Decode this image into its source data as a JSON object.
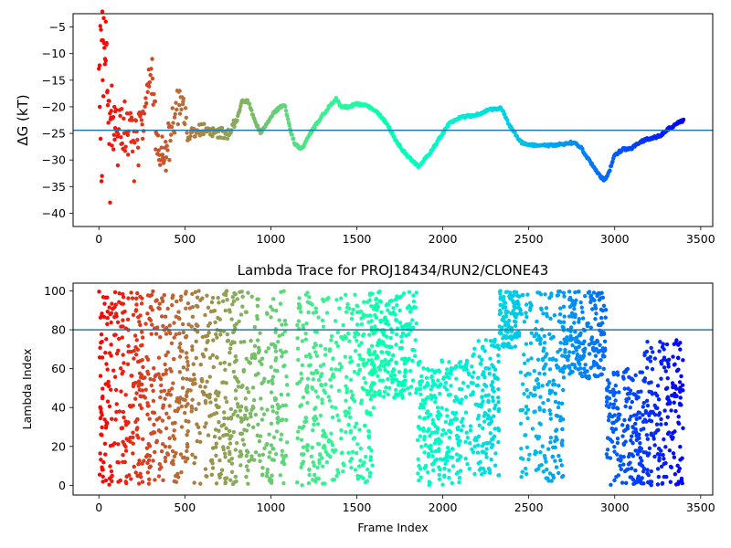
{
  "chart_data": [
    {
      "type": "scatter",
      "title": "",
      "xlabel": "",
      "ylabel": "ΔG (kT)",
      "xlim": [
        -150,
        3570
      ],
      "ylim": [
        -42.5,
        -2.5
      ],
      "xticks": [
        0,
        500,
        1000,
        1500,
        2000,
        2500,
        3000,
        3500
      ],
      "yticks": [
        -40,
        -35,
        -30,
        -25,
        -20,
        -15,
        -10,
        -5
      ],
      "hline": -24.4,
      "hline_color": "#1f77b4",
      "colormap": "rainbow_r",
      "grid": false,
      "trace": [
        [
          0,
          -10
        ],
        [
          20,
          -5
        ],
        [
          40,
          -9
        ],
        [
          60,
          -21
        ],
        [
          80,
          -25
        ],
        [
          100,
          -24
        ],
        [
          120,
          -22
        ],
        [
          140,
          -25
        ],
        [
          160,
          -25
        ],
        [
          180,
          -23
        ],
        [
          200,
          -26
        ],
        [
          220,
          -25
        ],
        [
          240,
          -24
        ],
        [
          260,
          -23
        ],
        [
          280,
          -18
        ],
        [
          300,
          -14
        ],
        [
          320,
          -18
        ],
        [
          340,
          -26
        ],
        [
          360,
          -28
        ],
        [
          380,
          -27
        ],
        [
          400,
          -26
        ],
        [
          420,
          -24
        ],
        [
          440,
          -22
        ],
        [
          460,
          -20
        ],
        [
          480,
          -18
        ],
        [
          500,
          -23
        ],
        [
          520,
          -25
        ],
        [
          560,
          -25
        ],
        [
          600,
          -24
        ],
        [
          650,
          -25
        ],
        [
          700,
          -25
        ],
        [
          750,
          -25
        ],
        [
          800,
          -23
        ],
        [
          830,
          -19
        ],
        [
          870,
          -19
        ],
        [
          900,
          -22
        ],
        [
          940,
          -25
        ],
        [
          980,
          -23
        ],
        [
          1020,
          -21
        ],
        [
          1080,
          -19.5
        ],
        [
          1110,
          -24
        ],
        [
          1140,
          -27
        ],
        [
          1180,
          -28
        ],
        [
          1230,
          -25
        ],
        [
          1290,
          -22
        ],
        [
          1340,
          -20
        ],
        [
          1380,
          -18.5
        ],
        [
          1410,
          -20
        ],
        [
          1450,
          -20
        ],
        [
          1500,
          -19.5
        ],
        [
          1560,
          -19.8
        ],
        [
          1620,
          -21
        ],
        [
          1680,
          -23.5
        ],
        [
          1740,
          -27
        ],
        [
          1800,
          -29.5
        ],
        [
          1860,
          -31.2
        ],
        [
          1920,
          -29
        ],
        [
          1980,
          -26
        ],
        [
          2040,
          -23
        ],
        [
          2100,
          -22
        ],
        [
          2200,
          -21.5
        ],
        [
          2280,
          -20.5
        ],
        [
          2340,
          -20.2
        ],
        [
          2380,
          -23
        ],
        [
          2420,
          -25
        ],
        [
          2460,
          -26.8
        ],
        [
          2500,
          -27.2
        ],
        [
          2600,
          -27.3
        ],
        [
          2700,
          -27
        ],
        [
          2760,
          -26.7
        ],
        [
          2800,
          -27.5
        ],
        [
          2850,
          -30
        ],
        [
          2900,
          -32.5
        ],
        [
          2940,
          -33.8
        ],
        [
          2970,
          -32
        ],
        [
          3000,
          -29
        ],
        [
          3050,
          -28
        ],
        [
          3100,
          -27.8
        ],
        [
          3150,
          -26.5
        ],
        [
          3200,
          -26
        ],
        [
          3260,
          -25.5
        ],
        [
          3320,
          -24
        ],
        [
          3400,
          -22.5
        ]
      ],
      "noise_points": [
        [
          5,
          -20
        ],
        [
          10,
          -26
        ],
        [
          15,
          -34
        ],
        [
          18,
          -33
        ],
        [
          22,
          -15
        ],
        [
          26,
          -18
        ],
        [
          30,
          -8
        ],
        [
          35,
          -12
        ],
        [
          40,
          -4
        ],
        [
          45,
          -8
        ],
        [
          50,
          -17
        ],
        [
          55,
          -23
        ],
        [
          60,
          -27
        ],
        [
          65,
          -38
        ],
        [
          70,
          -22
        ],
        [
          75,
          -16
        ],
        [
          85,
          -28
        ],
        [
          90,
          -20
        ],
        [
          95,
          -24
        ],
        [
          110,
          -31
        ],
        [
          130,
          -27
        ],
        [
          150,
          -19
        ],
        [
          170,
          -29
        ],
        [
          190,
          -22
        ],
        [
          205,
          -34
        ],
        [
          230,
          -31
        ],
        [
          255,
          -26
        ],
        [
          290,
          -13
        ],
        [
          310,
          -11
        ],
        [
          330,
          -28
        ],
        [
          350,
          -30
        ],
        [
          370,
          -29
        ],
        [
          390,
          -32
        ],
        [
          410,
          -30
        ],
        [
          440,
          -22
        ],
        [
          470,
          -17
        ],
        [
          490,
          -19
        ]
      ]
    },
    {
      "type": "scatter",
      "title": "Lambda Trace for PROJ18434/RUN2/CLONE43",
      "xlabel": "Frame Index",
      "ylabel": "Lambda Index",
      "xlim": [
        -150,
        3570
      ],
      "ylim": [
        -5,
        104
      ],
      "xticks": [
        0,
        500,
        1000,
        1500,
        2000,
        2500,
        3000,
        3500
      ],
      "yticks": [
        0,
        20,
        40,
        60,
        80,
        100
      ],
      "hline": 80,
      "hline_color": "#1f77b4",
      "colormap": "rainbow_r",
      "grid": false,
      "segments": [
        {
          "x": [
            0,
            100
          ],
          "y": [
            0,
            100
          ]
        },
        {
          "x": [
            100,
            1100
          ],
          "y": [
            0,
            100
          ]
        },
        {
          "x": [
            1150,
            1600
          ],
          "y": [
            0,
            100
          ]
        },
        {
          "x": [
            1580,
            1850
          ],
          "y": [
            45,
            100
          ]
        },
        {
          "x": [
            1850,
            2150
          ],
          "y": [
            0,
            65
          ]
        },
        {
          "x": [
            2150,
            2330
          ],
          "y": [
            5,
            75
          ]
        },
        {
          "x": [
            2330,
            2450
          ],
          "y": [
            70,
            100
          ]
        },
        {
          "x": [
            2450,
            2700
          ],
          "y": [
            2,
            100
          ]
        },
        {
          "x": [
            2700,
            2950
          ],
          "y": [
            55,
            100
          ]
        },
        {
          "x": [
            2950,
            3170
          ],
          "y": [
            0,
            60
          ]
        },
        {
          "x": [
            3170,
            3400
          ],
          "y": [
            0,
            75
          ]
        }
      ]
    }
  ]
}
